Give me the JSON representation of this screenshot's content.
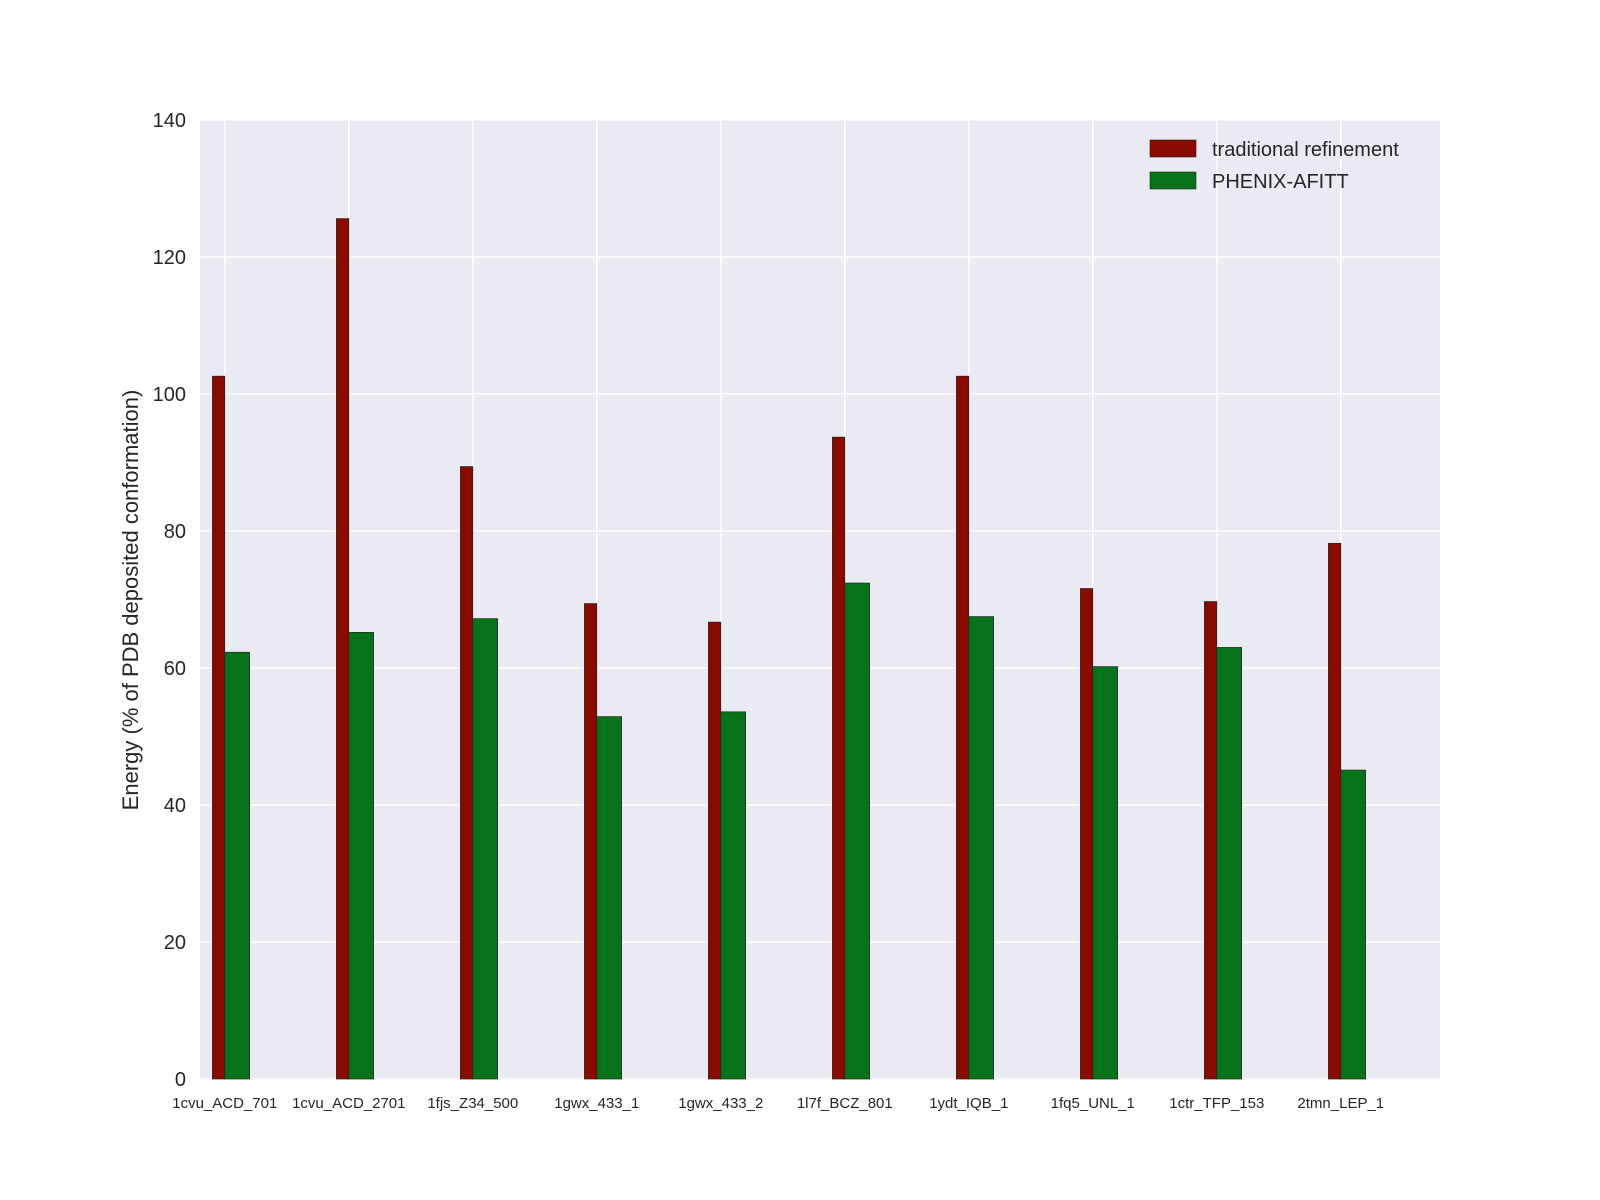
{
  "chart_data": {
    "type": "bar",
    "title": "",
    "xlabel": "",
    "ylabel": "Energy (% of PDB deposited conformation)",
    "ylim": [
      0,
      140
    ],
    "yticks": [
      0,
      20,
      40,
      60,
      80,
      100,
      120,
      140
    ],
    "grid": true,
    "legend_position": "top-right",
    "categories": [
      "1cvu_ACD_701",
      "1cvu_ACD_2701",
      "1fjs_Z34_500",
      "1gwx_433_1",
      "1gwx_433_2",
      "1l7f_BCZ_801",
      "1ydt_IQB_1",
      "1fq5_UNL_1",
      "1ctr_TFP_153",
      "2tmn_LEP_1"
    ],
    "series": [
      {
        "name": "traditional refinement",
        "color": "#8b0a00",
        "values": [
          102.6,
          125.6,
          89.4,
          69.4,
          66.7,
          93.7,
          102.6,
          71.6,
          69.7,
          78.2
        ]
      },
      {
        "name": "PHENIX-AFITT",
        "color": "#06731b",
        "values": [
          62.3,
          65.2,
          67.2,
          52.9,
          53.6,
          72.4,
          67.5,
          60.2,
          63.0,
          45.1
        ]
      }
    ],
    "background_color": "#eaeaf2"
  }
}
